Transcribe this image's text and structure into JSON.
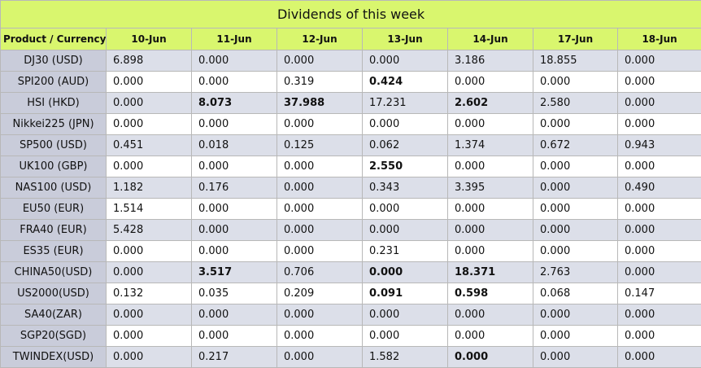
{
  "title": "Dividends of this week",
  "columns": [
    "Product / Currency",
    "10-Jun",
    "11-Jun",
    "12-Jun",
    "13-Jun",
    "14-Jun",
    "17-Jun",
    "18-Jun"
  ],
  "rows": [
    {
      "product": "DJ30 (USD)",
      "values": [
        "6.898",
        "0.000",
        "0.000",
        "0.000",
        "3.186",
        "18.855",
        "0.000"
      ],
      "bold": [
        false,
        false,
        false,
        false,
        false,
        false,
        false
      ]
    },
    {
      "product": "SPI200 (AUD)",
      "values": [
        "0.000",
        "0.000",
        "0.319",
        "0.424",
        "0.000",
        "0.000",
        "0.000"
      ],
      "bold": [
        false,
        false,
        false,
        true,
        false,
        false,
        false
      ]
    },
    {
      "product": "HSI (HKD)",
      "values": [
        "0.000",
        "8.073",
        "37.988",
        "17.231",
        "2.602",
        "2.580",
        "0.000"
      ],
      "bold": [
        false,
        true,
        true,
        false,
        true,
        false,
        false
      ]
    },
    {
      "product": "Nikkei225 (JPN)",
      "values": [
        "0.000",
        "0.000",
        "0.000",
        "0.000",
        "0.000",
        "0.000",
        "0.000"
      ],
      "bold": [
        false,
        false,
        false,
        false,
        false,
        false,
        false
      ]
    },
    {
      "product": "SP500 (USD)",
      "values": [
        "0.451",
        "0.018",
        "0.125",
        "0.062",
        "1.374",
        "0.672",
        "0.943"
      ],
      "bold": [
        false,
        false,
        false,
        false,
        false,
        false,
        false
      ]
    },
    {
      "product": "UK100 (GBP)",
      "values": [
        "0.000",
        "0.000",
        "0.000",
        "2.550",
        "0.000",
        "0.000",
        "0.000"
      ],
      "bold": [
        false,
        false,
        false,
        true,
        false,
        false,
        false
      ]
    },
    {
      "product": "NAS100 (USD)",
      "values": [
        "1.182",
        "0.176",
        "0.000",
        "0.343",
        "3.395",
        "0.000",
        "0.490"
      ],
      "bold": [
        false,
        false,
        false,
        false,
        false,
        false,
        false
      ]
    },
    {
      "product": "EU50 (EUR)",
      "values": [
        "1.514",
        "0.000",
        "0.000",
        "0.000",
        "0.000",
        "0.000",
        "0.000"
      ],
      "bold": [
        false,
        false,
        false,
        false,
        false,
        false,
        false
      ]
    },
    {
      "product": "FRA40 (EUR)",
      "values": [
        "5.428",
        "0.000",
        "0.000",
        "0.000",
        "0.000",
        "0.000",
        "0.000"
      ],
      "bold": [
        false,
        false,
        false,
        false,
        false,
        false,
        false
      ]
    },
    {
      "product": "ES35 (EUR)",
      "values": [
        "0.000",
        "0.000",
        "0.000",
        "0.231",
        "0.000",
        "0.000",
        "0.000"
      ],
      "bold": [
        false,
        false,
        false,
        false,
        false,
        false,
        false
      ]
    },
    {
      "product": "CHINA50(USD)",
      "values": [
        "0.000",
        "3.517",
        "0.706",
        "0.000",
        "18.371",
        "2.763",
        "0.000"
      ],
      "bold": [
        false,
        true,
        false,
        true,
        true,
        false,
        false
      ]
    },
    {
      "product": "US2000(USD)",
      "values": [
        "0.132",
        "0.035",
        "0.209",
        "0.091",
        "0.598",
        "0.068",
        "0.147"
      ],
      "bold": [
        false,
        false,
        false,
        true,
        true,
        false,
        false
      ]
    },
    {
      "product": "SA40(ZAR)",
      "values": [
        "0.000",
        "0.000",
        "0.000",
        "0.000",
        "0.000",
        "0.000",
        "0.000"
      ],
      "bold": [
        false,
        false,
        false,
        false,
        false,
        false,
        false
      ]
    },
    {
      "product": "SGP20(SGD)",
      "values": [
        "0.000",
        "0.000",
        "0.000",
        "0.000",
        "0.000",
        "0.000",
        "0.000"
      ],
      "bold": [
        false,
        false,
        false,
        false,
        false,
        false,
        false
      ]
    },
    {
      "product": "TWINDEX(USD)",
      "values": [
        "0.000",
        "0.217",
        "0.000",
        "1.582",
        "0.000",
        "0.000",
        "0.000"
      ],
      "bold": [
        false,
        false,
        false,
        false,
        true,
        false,
        false
      ]
    }
  ],
  "colors": {
    "header_bg": "#d9f66e",
    "product_bg": "#c9ccda",
    "alt_row_bg": "#dcdfe9",
    "row_bg": "#ffffff"
  }
}
